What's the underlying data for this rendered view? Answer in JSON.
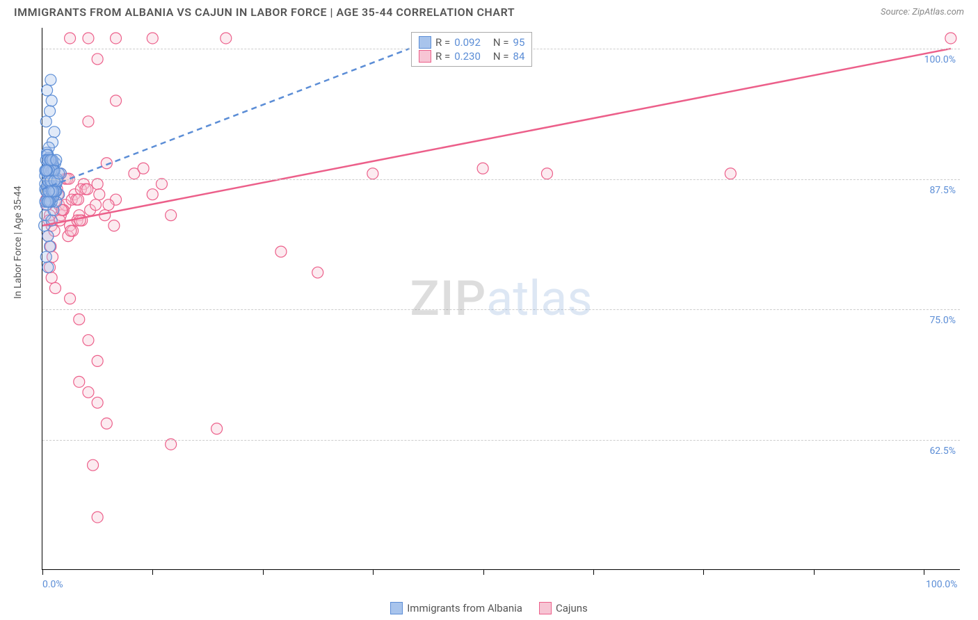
{
  "header": {
    "title": "IMMIGRANTS FROM ALBANIA VS CAJUN IN LABOR FORCE | AGE 35-44 CORRELATION CHART",
    "source": "Source: ZipAtlas.com"
  },
  "chart": {
    "type": "scatter",
    "y_label": "In Labor Force | Age 35-44",
    "background_color": "#ffffff",
    "grid_color": "#cccccc",
    "xlim": [
      0,
      100
    ],
    "ylim": [
      50,
      102
    ],
    "x_ticks": [
      0,
      12,
      24,
      36,
      48,
      60,
      72,
      84,
      96
    ],
    "x_tick_labels_shown": {
      "0": "0.0%",
      "100": "100.0%"
    },
    "y_gridlines": [
      62.5,
      75.0,
      87.5,
      100.0
    ],
    "y_tick_labels": [
      "62.5%",
      "75.0%",
      "87.5%",
      "100.0%"
    ],
    "marker_radius": 8,
    "marker_opacity": 0.35,
    "line_width": 2.5,
    "series": {
      "albania": {
        "label": "Immigrants from Albania",
        "color_fill": "#a8c4ec",
        "color_stroke": "#5b8dd6",
        "R": "0.092",
        "N": "95",
        "trend": {
          "x1": 0,
          "y1": 86.5,
          "x2": 40,
          "y2": 100.0,
          "style": "dashed"
        },
        "points": [
          [
            0.3,
            87
          ],
          [
            0.5,
            88
          ],
          [
            0.7,
            86
          ],
          [
            0.4,
            85
          ],
          [
            0.6,
            89
          ],
          [
            0.8,
            87.5
          ],
          [
            1.0,
            86
          ],
          [
            0.5,
            90
          ],
          [
            1.2,
            88
          ],
          [
            0.9,
            85.5
          ],
          [
            0.3,
            84
          ],
          [
            1.1,
            87
          ],
          [
            0.7,
            89.5
          ],
          [
            1.4,
            86.5
          ],
          [
            0.2,
            83
          ],
          [
            0.6,
            82
          ],
          [
            0.4,
            93
          ],
          [
            0.8,
            94
          ],
          [
            1.0,
            95
          ],
          [
            1.3,
            92
          ],
          [
            0.5,
            96
          ],
          [
            0.9,
            97
          ],
          [
            1.1,
            91
          ],
          [
            0.7,
            90.5
          ],
          [
            0.3,
            86.5
          ],
          [
            1.5,
            87
          ],
          [
            2.0,
            88
          ],
          [
            1.8,
            86
          ],
          [
            0.6,
            79
          ],
          [
            0.4,
            80
          ],
          [
            0.8,
            81
          ],
          [
            1.0,
            83.5
          ],
          [
            1.2,
            84.5
          ],
          [
            0.5,
            85.5
          ],
          [
            0.9,
            88.5
          ],
          [
            1.4,
            89
          ],
          [
            1.6,
            87.5
          ],
          [
            0.7,
            86.8
          ],
          [
            1.1,
            85.8
          ],
          [
            0.3,
            87.8
          ],
          [
            0.8,
            86.2
          ],
          [
            1.0,
            87.2
          ],
          [
            0.5,
            88.2
          ],
          [
            1.2,
            86.2
          ],
          [
            0.9,
            89.2
          ],
          [
            0.6,
            87.8
          ],
          [
            1.3,
            88.3
          ],
          [
            0.4,
            86.3
          ],
          [
            1.5,
            85.3
          ],
          [
            0.7,
            87.3
          ],
          [
            1.0,
            89.3
          ],
          [
            0.8,
            88.8
          ],
          [
            1.1,
            87.8
          ],
          [
            0.5,
            86.8
          ],
          [
            0.9,
            85.8
          ],
          [
            1.2,
            88.8
          ],
          [
            0.6,
            89.8
          ],
          [
            1.4,
            86.8
          ],
          [
            0.3,
            88.3
          ],
          [
            1.6,
            87.3
          ],
          [
            0.7,
            86.3
          ],
          [
            1.0,
            85.3
          ],
          [
            0.8,
            87.8
          ],
          [
            1.1,
            88.8
          ],
          [
            0.5,
            89.8
          ],
          [
            0.9,
            86.8
          ],
          [
            1.2,
            85.8
          ],
          [
            0.6,
            87.3
          ],
          [
            1.3,
            88.3
          ],
          [
            0.4,
            89.3
          ],
          [
            1.5,
            86.3
          ],
          [
            0.7,
            85.3
          ],
          [
            1.0,
            88.3
          ],
          [
            0.8,
            89.3
          ],
          [
            1.1,
            86.3
          ],
          [
            0.5,
            85.3
          ],
          [
            0.9,
            87.3
          ],
          [
            1.2,
            88.3
          ],
          [
            0.6,
            89.3
          ],
          [
            1.4,
            86.3
          ],
          [
            0.3,
            85.3
          ],
          [
            1.6,
            87.3
          ],
          [
            0.7,
            88.3
          ],
          [
            1.0,
            86.3
          ],
          [
            0.8,
            85.3
          ],
          [
            1.1,
            89.3
          ],
          [
            0.5,
            88.3
          ],
          [
            0.9,
            89.3
          ],
          [
            1.2,
            86.3
          ],
          [
            0.6,
            85.3
          ],
          [
            1.3,
            87.3
          ],
          [
            0.4,
            88.3
          ],
          [
            1.5,
            89.3
          ],
          [
            0.7,
            86.3
          ],
          [
            1.8,
            88
          ]
        ]
      },
      "cajuns": {
        "label": "Cajuns",
        "color_fill": "#f7c5d4",
        "color_stroke": "#ec5f8a",
        "R": "0.230",
        "N": "84",
        "trend": {
          "x1": 0,
          "y1": 83.0,
          "x2": 99,
          "y2": 100.0,
          "style": "solid"
        },
        "points": [
          [
            0.5,
            85
          ],
          [
            0.8,
            84
          ],
          [
            1.0,
            83
          ],
          [
            0.6,
            82
          ],
          [
            1.2,
            86
          ],
          [
            1.5,
            87
          ],
          [
            0.9,
            81
          ],
          [
            1.1,
            80
          ],
          [
            1.8,
            85
          ],
          [
            2.0,
            84
          ],
          [
            0.7,
            83.5
          ],
          [
            1.3,
            82.5
          ],
          [
            1.6,
            86.5
          ],
          [
            0.4,
            85.5
          ],
          [
            2.2,
            84.5
          ],
          [
            1.9,
            83.5
          ],
          [
            0.8,
            79
          ],
          [
            1.0,
            78
          ],
          [
            1.4,
            77
          ],
          [
            1.7,
            86
          ],
          [
            2.5,
            87.5
          ],
          [
            3,
            101
          ],
          [
            5,
            101
          ],
          [
            8,
            101
          ],
          [
            12,
            101
          ],
          [
            20,
            101
          ],
          [
            6,
            99
          ],
          [
            8,
            95
          ],
          [
            5,
            93
          ],
          [
            7,
            89
          ],
          [
            6,
            87
          ],
          [
            8,
            85.5
          ],
          [
            10,
            88
          ],
          [
            12,
            86
          ],
          [
            14,
            84
          ],
          [
            11,
            88.5
          ],
          [
            13,
            87
          ],
          [
            3,
            76
          ],
          [
            4,
            74
          ],
          [
            5,
            72
          ],
          [
            6,
            70
          ],
          [
            4,
            68
          ],
          [
            5,
            67
          ],
          [
            6,
            66
          ],
          [
            7,
            64
          ],
          [
            5.5,
            60
          ],
          [
            6,
            55
          ],
          [
            14,
            62
          ],
          [
            19,
            63.5
          ],
          [
            36,
            88
          ],
          [
            48,
            88.5
          ],
          [
            55,
            88
          ],
          [
            75,
            88
          ],
          [
            26,
            80.5
          ],
          [
            30,
            78.5
          ],
          [
            99,
            101
          ],
          [
            2,
            88
          ],
          [
            2.5,
            85
          ],
          [
            3,
            83
          ],
          [
            3.5,
            86
          ],
          [
            4,
            84
          ],
          [
            4.5,
            87
          ],
          [
            2.8,
            82
          ],
          [
            3.2,
            85.5
          ],
          [
            3.8,
            83.5
          ],
          [
            4.2,
            86.5
          ],
          [
            2.3,
            84.5
          ],
          [
            2.7,
            87.5
          ],
          [
            3.3,
            82.5
          ],
          [
            3.7,
            85.5
          ],
          [
            4.3,
            83.5
          ],
          [
            4.7,
            86.5
          ],
          [
            2.1,
            84.5
          ],
          [
            2.9,
            87.5
          ],
          [
            3.1,
            82.5
          ],
          [
            3.9,
            85.5
          ],
          [
            4.1,
            83.5
          ],
          [
            4.9,
            86.5
          ],
          [
            5.2,
            84.5
          ],
          [
            5.8,
            85
          ],
          [
            6.2,
            86
          ],
          [
            6.8,
            84
          ],
          [
            7.2,
            85
          ],
          [
            7.8,
            83
          ]
        ]
      }
    },
    "legend_bottom": {
      "items": [
        {
          "label": "Immigrants from Albania",
          "fill": "#a8c4ec",
          "stroke": "#5b8dd6"
        },
        {
          "label": "Cajuns",
          "fill": "#f7c5d4",
          "stroke": "#ec5f8a"
        }
      ]
    },
    "watermark": {
      "zip": "ZIP",
      "atlas": "atlas"
    }
  }
}
